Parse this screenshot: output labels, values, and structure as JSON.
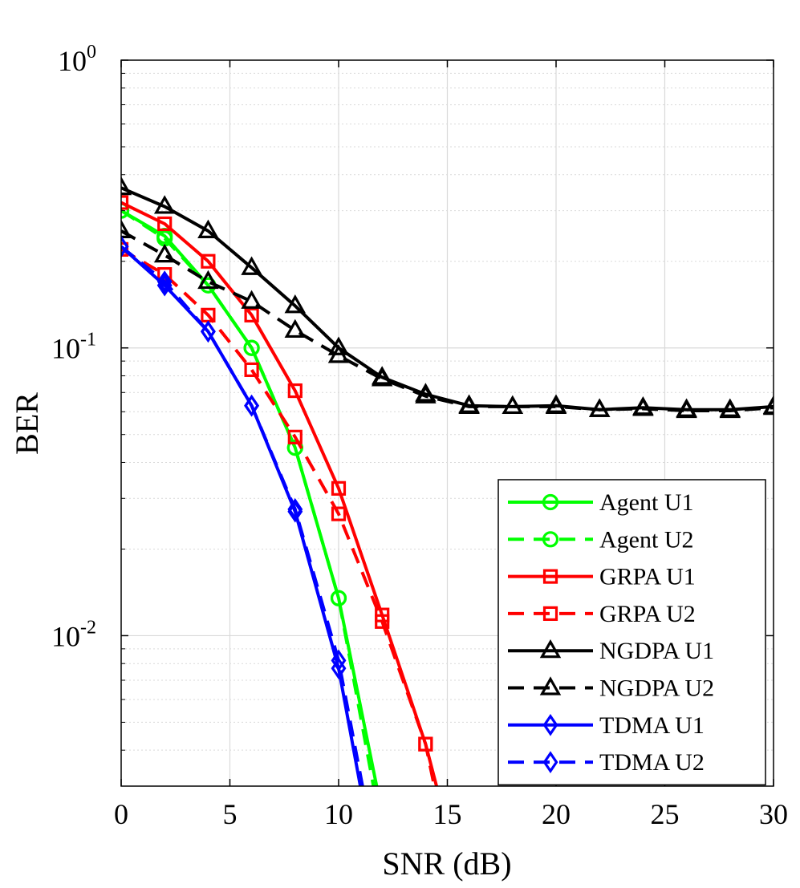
{
  "chart_data": {
    "type": "line",
    "title": "",
    "xlabel": "SNR (dB)",
    "ylabel": "BER",
    "xlim": [
      0,
      30
    ],
    "ylim": [
      0.003,
      1
    ],
    "yscale": "log",
    "grid": true,
    "xticks": [
      0,
      5,
      10,
      15,
      20,
      25,
      30
    ],
    "xtick_labels": [
      "0",
      "5",
      "10",
      "15",
      "20",
      "25",
      "30"
    ],
    "yticks": [
      {
        "value": 1,
        "base": "10",
        "exp": "0"
      },
      {
        "value": 0.1,
        "base": "10",
        "exp": "-1"
      },
      {
        "value": 0.01,
        "base": "10",
        "exp": "-2"
      }
    ],
    "legend_position": "bottom-right",
    "series": [
      {
        "name": "Agent U1",
        "color": "#00ff00",
        "dash": "solid",
        "marker": "circle",
        "x": [
          0,
          2,
          4,
          6,
          8,
          10,
          11.75
        ],
        "y": [
          0.3,
          0.245,
          0.165,
          0.1,
          0.045,
          0.0135,
          0.003
        ]
      },
      {
        "name": "Agent U2",
        "color": "#00ff00",
        "dash": "dashed",
        "marker": "circle",
        "x": [
          0,
          2,
          4,
          6,
          8,
          10,
          11.6
        ],
        "y": [
          0.3,
          0.24,
          0.165,
          0.1,
          0.045,
          0.0135,
          0.003
        ]
      },
      {
        "name": "GRPA U1",
        "color": "#ff0000",
        "dash": "solid",
        "marker": "square",
        "x": [
          0,
          2,
          4,
          6,
          8,
          10,
          12,
          14,
          14.5
        ],
        "y": [
          0.32,
          0.27,
          0.2,
          0.13,
          0.071,
          0.0325,
          0.0118,
          0.0042,
          0.003
        ]
      },
      {
        "name": "GRPA U2",
        "color": "#ff0000",
        "dash": "dashed",
        "marker": "square",
        "x": [
          0,
          2,
          4,
          6,
          8,
          10,
          12,
          14,
          14.4
        ],
        "y": [
          0.22,
          0.18,
          0.13,
          0.084,
          0.049,
          0.0265,
          0.0112,
          0.0042,
          0.003
        ]
      },
      {
        "name": "NGDPA U1",
        "color": "#000000",
        "dash": "solid",
        "marker": "triangle",
        "x": [
          0,
          2,
          4,
          6,
          8,
          10,
          12,
          14,
          16,
          18,
          20,
          22,
          24,
          26,
          28,
          30
        ],
        "y": [
          0.36,
          0.31,
          0.255,
          0.19,
          0.14,
          0.1,
          0.079,
          0.069,
          0.063,
          0.0625,
          0.063,
          0.061,
          0.062,
          0.061,
          0.061,
          0.0625
        ]
      },
      {
        "name": "NGDPA U2",
        "color": "#000000",
        "dash": "dashed",
        "marker": "triangle",
        "x": [
          0,
          2,
          4,
          6,
          8,
          10,
          12,
          14,
          16,
          18,
          20,
          22,
          24,
          26,
          28,
          30
        ],
        "y": [
          0.255,
          0.21,
          0.17,
          0.145,
          0.115,
          0.094,
          0.078,
          0.068,
          0.0625,
          0.0625,
          0.0625,
          0.061,
          0.0615,
          0.0605,
          0.0605,
          0.062
        ]
      },
      {
        "name": "TDMA U1",
        "color": "#0000ff",
        "dash": "solid",
        "marker": "diamond",
        "x": [
          0,
          2,
          4,
          6,
          8,
          10,
          11.0
        ],
        "y": [
          0.225,
          0.165,
          0.114,
          0.063,
          0.027,
          0.0077,
          0.003
        ]
      },
      {
        "name": "TDMA U2",
        "color": "#0000ff",
        "dash": "dashed",
        "marker": "diamond",
        "x": [
          0,
          2,
          4,
          6,
          8,
          10,
          11.1
        ],
        "y": [
          0.225,
          0.17,
          0.114,
          0.063,
          0.0275,
          0.0082,
          0.003
        ]
      }
    ]
  }
}
